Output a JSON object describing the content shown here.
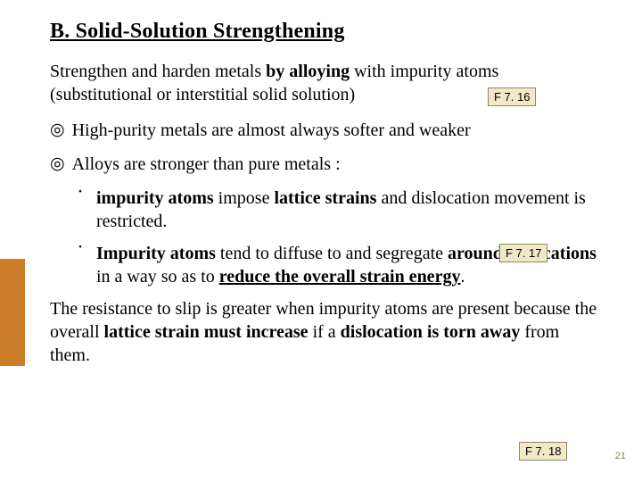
{
  "title": "B. Solid-Solution Strengthening",
  "intro_part1": "Strengthen and harden metals ",
  "intro_bold1": "by alloying",
  "intro_part2": " with impurity atoms (substitutional or interstitial solid solution)",
  "bullet1": "High-purity metals are almost always softer and weaker",
  "bullet2": "Alloys are stronger than pure metals :",
  "sub1_b1": "impurity atoms",
  "sub1_t1": " impose ",
  "sub1_b2": "lattice strains",
  "sub1_t2": " and dislocation movement is restricted.",
  "sub2_b1": "Impurity atoms",
  "sub2_t1": " tend to diffuse to and segregate ",
  "sub2_b2": "around dislocations",
  "sub2_t2": " in a way so as to ",
  "sub2_b3": "reduce the overall strain energy",
  "sub2_t3": ".",
  "closing_t1": "The resistance to slip is greater when impurity atoms are present because the overall ",
  "closing_b1": "lattice strain must increase",
  "closing_t2": " if a ",
  "closing_b2": "dislocation is torn away",
  "closing_t3": " from them.",
  "tag1": "F 7. 16",
  "tag2": "F 7. 17",
  "tag3": "F 7. 18",
  "page_number": "21",
  "colors": {
    "sidebar": "#cb7f2a",
    "tag_bg": "#f1e8c8",
    "tag_border": "#8a8a5a",
    "page_num": "#8a8356"
  }
}
